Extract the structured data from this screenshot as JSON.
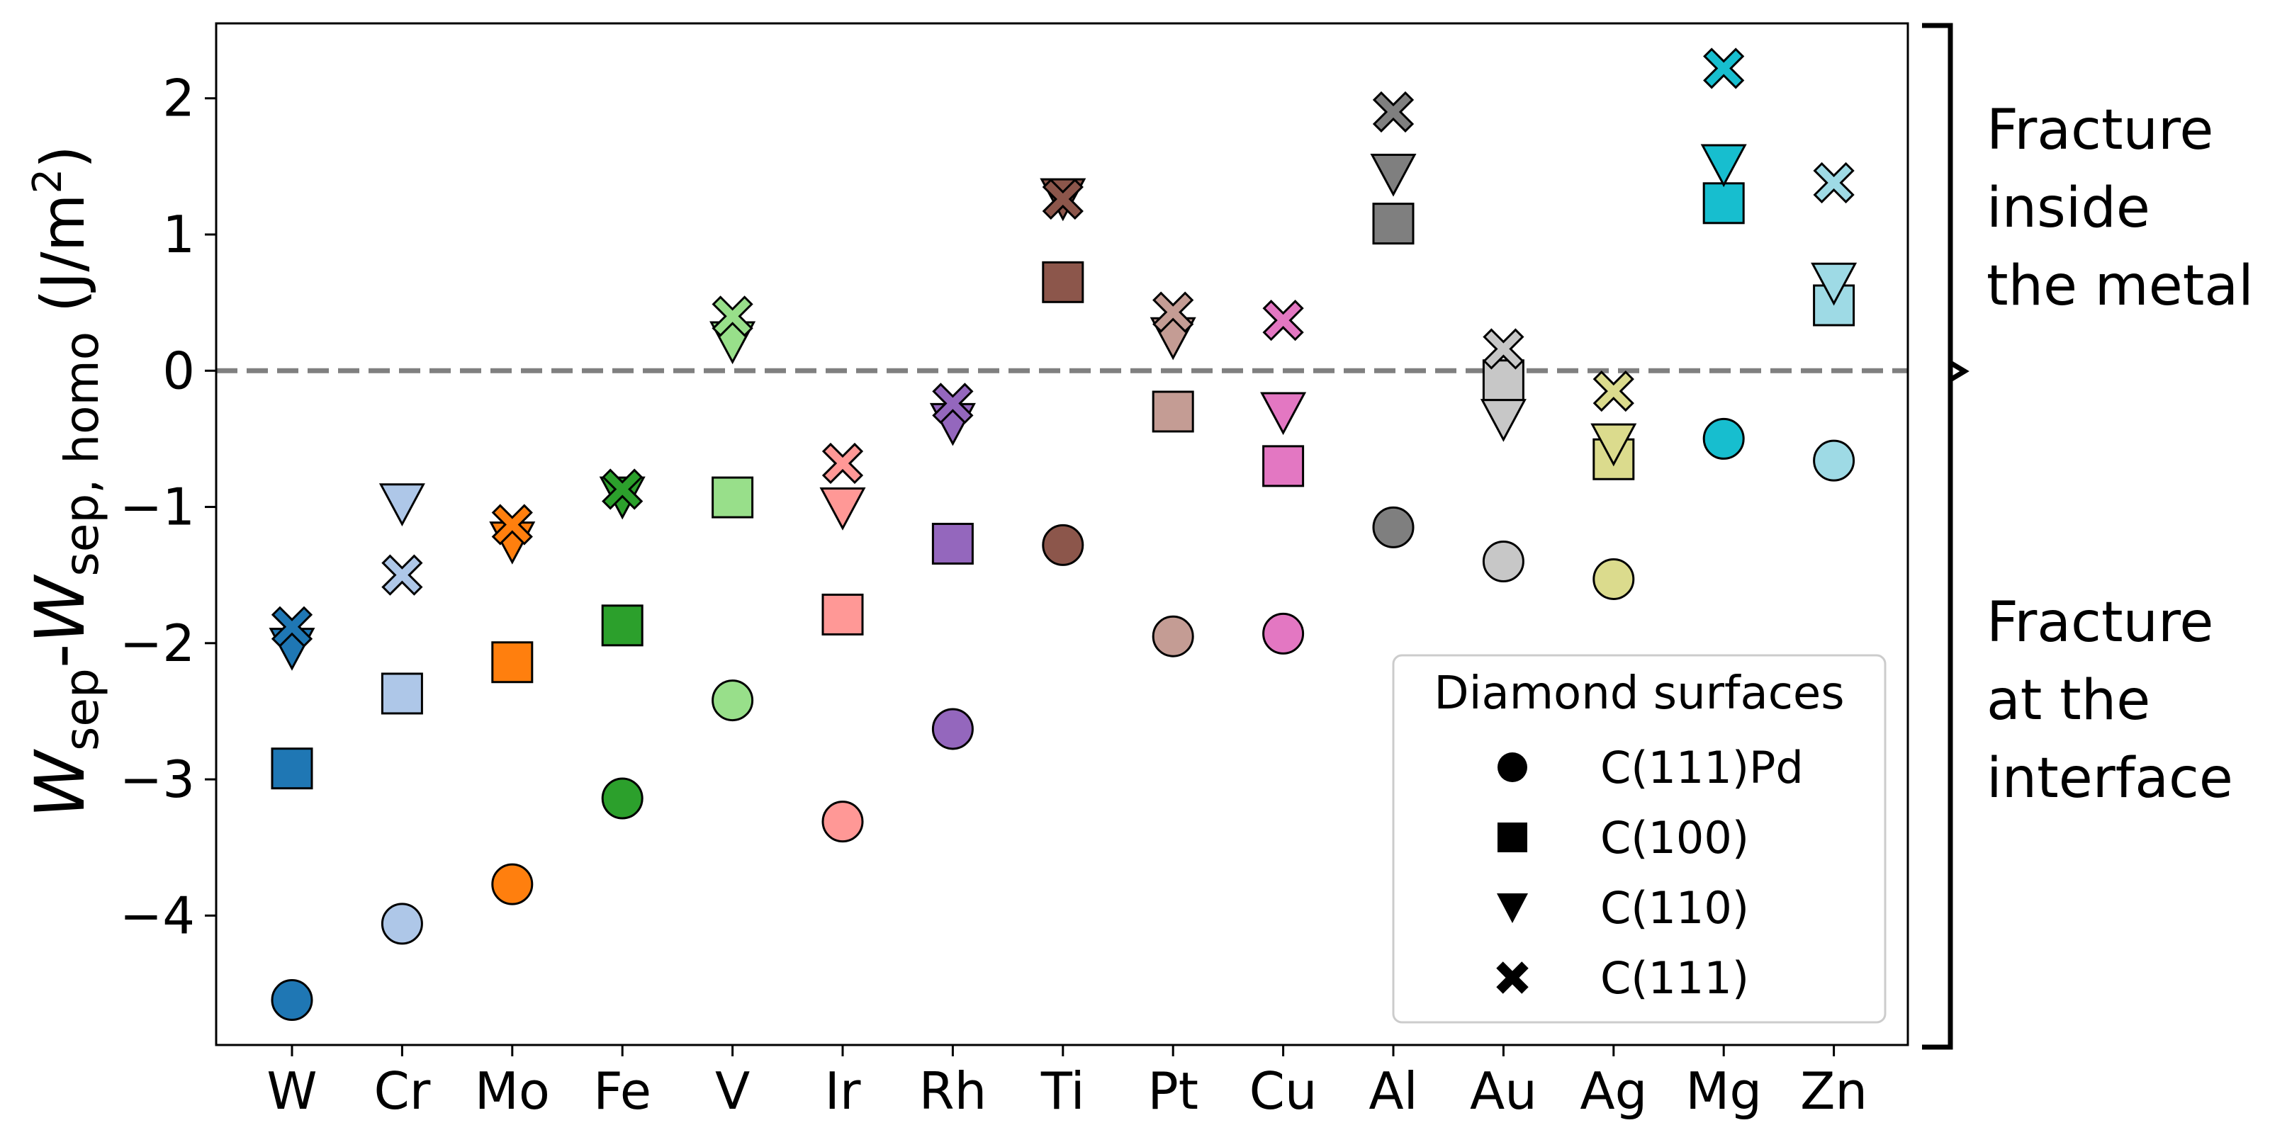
{
  "chart_data": {
    "type": "scatter",
    "xlabel": "",
    "ylabel": {
      "main": "W",
      "sub1": "sep",
      "dash": "-",
      "main2": "W",
      "sub2": "sep, homo",
      "unit_pre": " (J/m",
      "unit_sup": "2",
      "unit_post": ")"
    },
    "ylim": [
      -4.95,
      2.55
    ],
    "yticks": [
      2,
      1,
      0,
      -1,
      -2,
      -3,
      -4
    ],
    "ytick_labels": [
      "2",
      "1",
      "0",
      "−1",
      "−2",
      "−3",
      "−4"
    ],
    "reference_line": {
      "y": 0,
      "style": "dashed",
      "color": "#808080"
    },
    "categories": [
      "W",
      "Cr",
      "Mo",
      "Fe",
      "V",
      "Ir",
      "Rh",
      "Ti",
      "Pt",
      "Cu",
      "Al",
      "Au",
      "Ag",
      "Mg",
      "Zn"
    ],
    "colors": [
      "#1f77b4",
      "#aec7e8",
      "#ff7f0e",
      "#2ca02c",
      "#98df8a",
      "#ff9896",
      "#9467bd",
      "#8c564b",
      "#c49c94",
      "#e377c2",
      "#7f7f7f",
      "#c7c7c7",
      "#dbdb8d",
      "#17becf",
      "#9edae5"
    ],
    "series": [
      {
        "name": "C(111)Pd",
        "marker": "circle",
        "values": [
          -4.62,
          -4.06,
          -3.77,
          -3.14,
          -2.42,
          -3.31,
          -2.63,
          -1.28,
          -1.95,
          -1.93,
          -1.15,
          -1.4,
          -1.53,
          -0.5,
          -0.66
        ]
      },
      {
        "name": "C(100)",
        "marker": "square",
        "values": [
          -2.92,
          -2.37,
          -2.14,
          -1.87,
          -0.93,
          -1.79,
          -1.27,
          0.65,
          -0.3,
          -0.7,
          1.08,
          -0.07,
          -0.65,
          1.23,
          0.48
        ]
      },
      {
        "name": "C(110)",
        "marker": "triangle_down",
        "values": [
          -2.03,
          -0.97,
          -1.25,
          -0.92,
          0.22,
          -1.0,
          -0.38,
          1.27,
          0.25,
          -0.3,
          1.45,
          -0.35,
          -0.53,
          1.52,
          0.65
        ]
      },
      {
        "name": "C(111)",
        "marker": "x",
        "values": [
          -1.88,
          -1.5,
          -1.13,
          -0.87,
          0.4,
          -0.68,
          -0.24,
          1.26,
          0.43,
          0.37,
          1.9,
          0.16,
          -0.15,
          2.22,
          1.38
        ]
      }
    ],
    "legend": {
      "title": "Diamond surfaces",
      "position": "lower-right",
      "entries": [
        "C(111)Pd",
        "C(100)",
        "C(110)",
        "C(111)"
      ]
    },
    "annotations": [
      {
        "id": "upper",
        "lines": [
          "Fracture",
          "inside",
          "the metal"
        ]
      },
      {
        "id": "lower",
        "lines": [
          "Fracture",
          "at the",
          "interface"
        ]
      }
    ]
  }
}
